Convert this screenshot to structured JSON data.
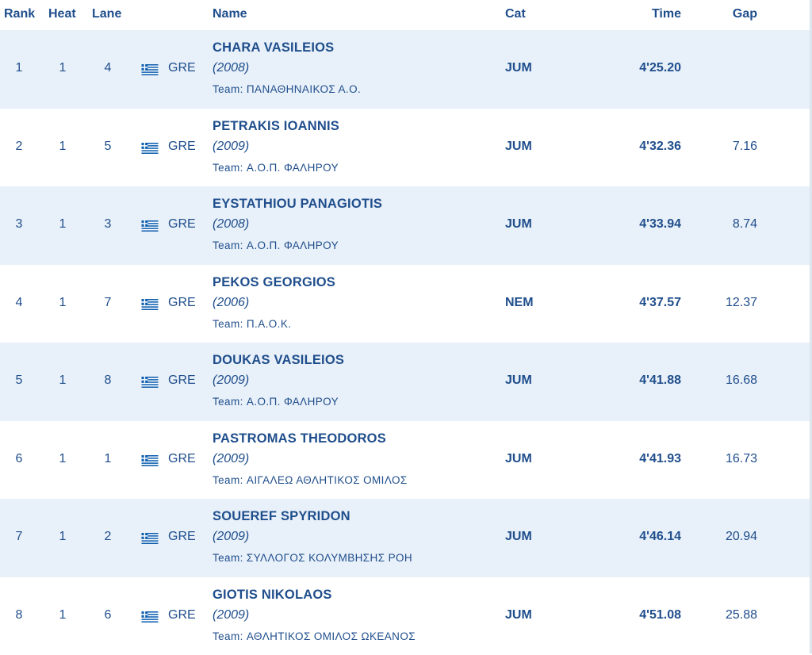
{
  "header": {
    "rank": "Rank",
    "heat": "Heat",
    "lane": "Lane",
    "name": "Name",
    "cat": "Cat",
    "time": "Time",
    "gap": "Gap"
  },
  "flag_colors": {
    "blue": "#0d5eaf",
    "white": "#ffffff"
  },
  "rows": [
    {
      "rank": "1",
      "heat": "1",
      "lane": "4",
      "nation": "GRE",
      "name": "CHARA VASILEIOS",
      "year": "(2008)",
      "team": "Team: ΠΑΝΑΘΗΝΑΙΚΟΣ Α.Ο.",
      "cat": "JUM",
      "time": "4'25.20",
      "gap": ""
    },
    {
      "rank": "2",
      "heat": "1",
      "lane": "5",
      "nation": "GRE",
      "name": "PETRAKIS IOANNIS",
      "year": "(2009)",
      "team": "Team: Α.Ο.Π. ΦΑΛΗΡΟΥ",
      "cat": "JUM",
      "time": "4'32.36",
      "gap": "7.16"
    },
    {
      "rank": "3",
      "heat": "1",
      "lane": "3",
      "nation": "GRE",
      "name": "EYSTATHIOU PANAGIOTIS",
      "year": "(2008)",
      "team": "Team: Α.Ο.Π. ΦΑΛΗΡΟΥ",
      "cat": "JUM",
      "time": "4'33.94",
      "gap": "8.74"
    },
    {
      "rank": "4",
      "heat": "1",
      "lane": "7",
      "nation": "GRE",
      "name": "PEKOS GEORGIOS",
      "year": "(2006)",
      "team": "Team: Π.Α.Ο.Κ.",
      "cat": "NEM",
      "time": "4'37.57",
      "gap": "12.37"
    },
    {
      "rank": "5",
      "heat": "1",
      "lane": "8",
      "nation": "GRE",
      "name": "DOUKAS VASILEIOS",
      "year": "(2009)",
      "team": "Team: Α.Ο.Π. ΦΑΛΗΡΟΥ",
      "cat": "JUM",
      "time": "4'41.88",
      "gap": "16.68"
    },
    {
      "rank": "6",
      "heat": "1",
      "lane": "1",
      "nation": "GRE",
      "name": "PASTROMAS THEODOROS",
      "year": "(2009)",
      "team": "Team: ΑΙΓΑΛΕΩ ΑΘΛΗΤΙΚΟΣ ΟΜΙΛΟΣ",
      "cat": "JUM",
      "time": "4'41.93",
      "gap": "16.73"
    },
    {
      "rank": "7",
      "heat": "1",
      "lane": "2",
      "nation": "GRE",
      "name": "SOUEREF SPYRIDON",
      "year": "(2009)",
      "team": "Team: ΣΥΛΛΟΓΟΣ ΚΟΛΥΜΒΗΣΗΣ ΡΟΗ",
      "cat": "JUM",
      "time": "4'46.14",
      "gap": "20.94"
    },
    {
      "rank": "8",
      "heat": "1",
      "lane": "6",
      "nation": "GRE",
      "name": "GIOTIS NIKOLAOS",
      "year": "(2009)",
      "team": "Team: ΑΘΛΗΤΙΚΟΣ ΟΜΙΛΟΣ ΩΚΕΑΝΟΣ",
      "cat": "JUM",
      "time": "4'51.08",
      "gap": "25.88"
    }
  ]
}
